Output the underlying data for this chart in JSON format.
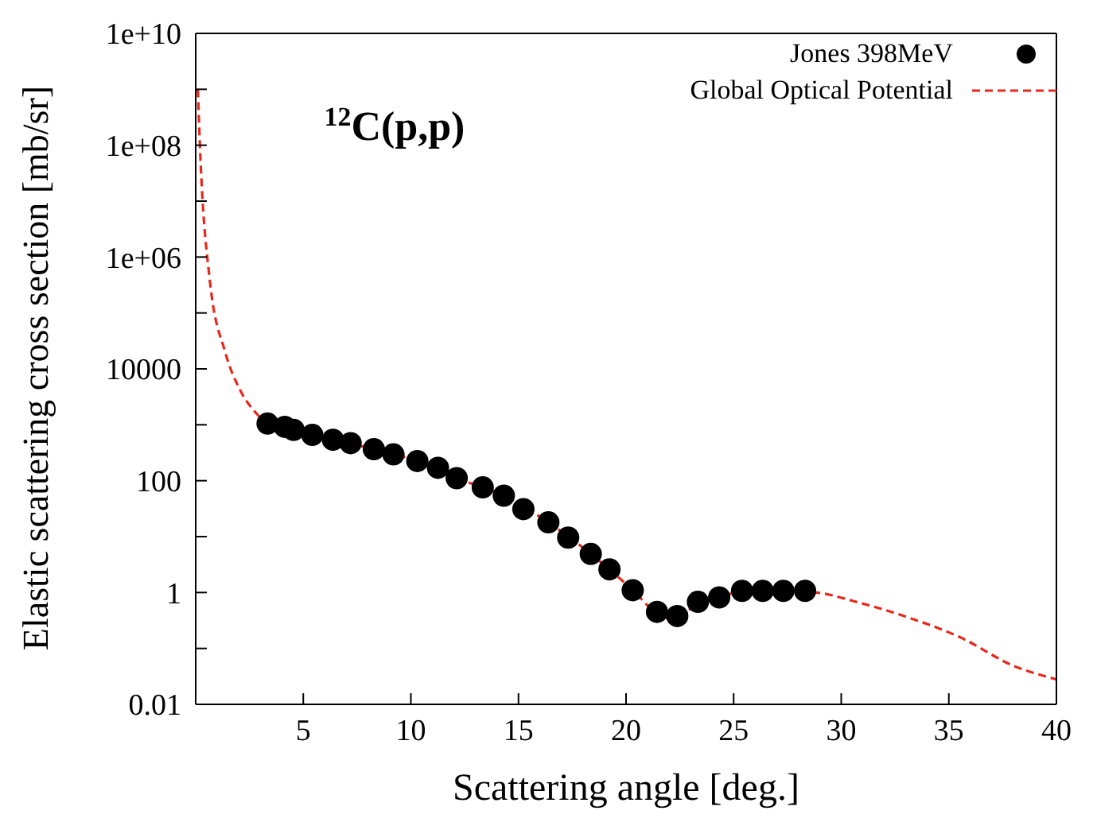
{
  "chart_data": {
    "type": "scatter",
    "title": "$^{12}$C(p,p)",
    "xlabel": "Scattering angle [deg.]",
    "ylabel": "Elastic scattering cross section [mb/sr]",
    "log": "y",
    "grid": false,
    "legend": "top right",
    "xlim": [
      0,
      40
    ],
    "xticks": [
      5,
      10,
      15,
      20,
      25,
      30,
      35,
      40
    ],
    "ylim": [
      0.01,
      10000000000
    ],
    "yticks": [
      0.01,
      {
        "value": 0.1,
        "label": null
      },
      1,
      {
        "value": 10,
        "label": null
      },
      100,
      {
        "value": 1000,
        "label": null
      },
      10000,
      {
        "value": 100000,
        "label": null
      },
      {
        "value": 1000000,
        "label": "1e+06"
      },
      {
        "value": 10000000,
        "label": null
      },
      {
        "value": 100000000,
        "label": "1e+08"
      },
      {
        "value": 1000000000,
        "label": null
      },
      {
        "value": 10000000000,
        "label": "1e+10"
      }
    ],
    "series": [
      {
        "name": "Jones 398MeV",
        "color": "#000000",
        "marker": "circle",
        "x": [
          3.34,
          4.14,
          4.55,
          5.42,
          6.38,
          7.2,
          8.28,
          9.19,
          10.3,
          11.26,
          12.13,
          13.34,
          14.32,
          15.23,
          16.39,
          17.31,
          18.36,
          19.23,
          20.31,
          21.44,
          22.38,
          23.34,
          24.33,
          25.39,
          26.35,
          27.31,
          28.32
        ],
        "values": [
          1050,
          920,
          810,
          660,
          540,
          470,
          365,
          295,
          225,
          170,
          111,
          76,
          54,
          31,
          18,
          9.6,
          4.9,
          2.6,
          1.1,
          0.45,
          0.38,
          0.68,
          0.82,
          1.07,
          1.07,
          1.07,
          1.07
        ]
      },
      {
        "name": "Global Optical Potential",
        "type": "line",
        "color": "#e8281e",
        "line_style": "dashed",
        "marker": "none",
        "x": [
          0.1,
          0.22,
          0.65,
          1.37,
          2.09,
          2.82,
          3.34,
          4.55,
          6.38,
          8.28,
          10.3,
          12.13,
          14.32,
          16.39,
          18.36,
          20.31,
          21.44,
          21.8,
          22.38,
          23.34,
          24.33,
          25.39,
          27.31,
          29.0,
          30.7,
          33.1,
          35.5,
          38.0,
          40.0
        ],
        "values": [
          1000000000,
          60000000,
          400000,
          20000,
          4000,
          1600,
          1050,
          810,
          540,
          365,
          225,
          111,
          54,
          18,
          4.9,
          1.1,
          0.42,
          0.35,
          0.36,
          0.65,
          0.85,
          1.02,
          1.07,
          0.98,
          0.68,
          0.36,
          0.16,
          0.049,
          0.028
        ]
      }
    ]
  }
}
